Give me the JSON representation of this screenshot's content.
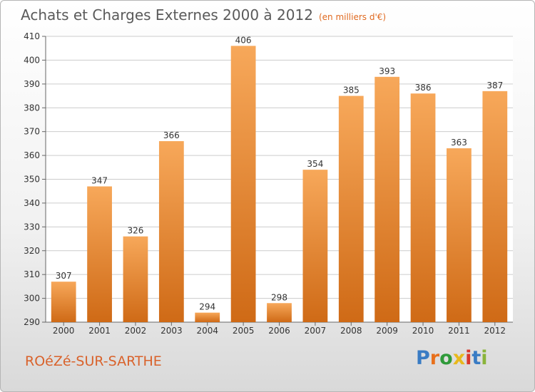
{
  "title": "Achats et Charges Externes 2000 à 2012",
  "subtitle": "(en milliers d'€)",
  "commune": "ROéZé-SUR-SARTHE",
  "logo": {
    "text": "Proxiti",
    "letters": [
      {
        "ch": "P",
        "color": "#3a7cc4"
      },
      {
        "ch": "r",
        "color": "#e8701c"
      },
      {
        "ch": "o",
        "color": "#2f9a3a"
      },
      {
        "ch": "x",
        "color": "#e8b81c"
      },
      {
        "ch": "i",
        "color": "#d9382b"
      },
      {
        "ch": "t",
        "color": "#3a7cc4"
      },
      {
        "ch": "i",
        "color": "#8ab43a"
      }
    ]
  },
  "colors": {
    "bar_top": "#f7a85a",
    "bar_bottom": "#cf6a16",
    "grid": "#cccccc",
    "axis": "#666666",
    "plot_bg": "#ffffff"
  },
  "chart_data": {
    "type": "bar",
    "categories": [
      "2000",
      "2001",
      "2002",
      "2003",
      "2004",
      "2005",
      "2006",
      "2007",
      "2008",
      "2009",
      "2010",
      "2011",
      "2012"
    ],
    "values": [
      307,
      347,
      326,
      366,
      294,
      406,
      298,
      354,
      385,
      393,
      386,
      363,
      387
    ],
    "title": "Achats et Charges Externes 2000 à 2012",
    "xlabel": "",
    "ylabel": "",
    "ylim": [
      290,
      410
    ],
    "yticks": [
      290,
      300,
      310,
      320,
      330,
      340,
      350,
      360,
      370,
      380,
      390,
      400,
      410
    ],
    "grid": true,
    "legend": "none"
  }
}
